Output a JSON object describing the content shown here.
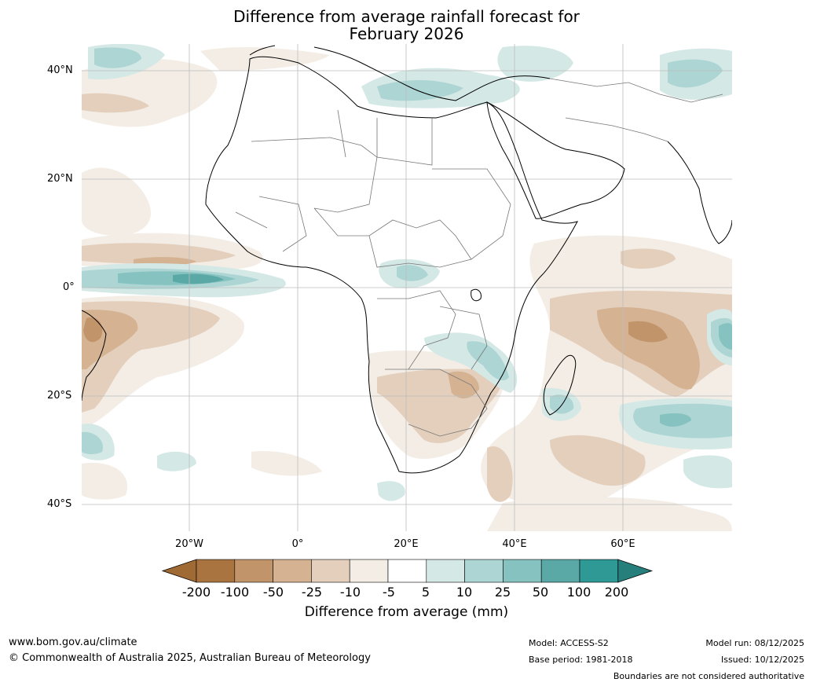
{
  "title": {
    "line1": "Difference from average rainfall forecast for",
    "line2": "February 2026"
  },
  "axes": {
    "lat_labels": [
      "40°N",
      "20°N",
      "0°",
      "20°S",
      "40°S"
    ],
    "lon_labels": [
      "20°W",
      "0°",
      "20°E",
      "40°E",
      "60°E"
    ]
  },
  "colorbar": {
    "title": "Difference from average (mm)",
    "ticks": [
      "-200",
      "-100",
      "-50",
      "-25",
      "-10",
      "-5",
      "5",
      "10",
      "25",
      "50",
      "100",
      "200"
    ],
    "colors": [
      "#a9743f",
      "#c19469",
      "#d4b292",
      "#e3cfbc",
      "#f3ede5",
      "#ffffff",
      "#d4e8e6",
      "#acd5d3",
      "#85c2c0",
      "#5aa9a7",
      "#2f9995"
    ],
    "low_extend_color": "#a06a35",
    "high_extend_color": "#277f7c"
  },
  "footer": {
    "website": "www.bom.gov.au/climate",
    "copyright": "© Commonwealth of Australia 2025, Australian Bureau of Meteorology",
    "model": "Model: ACCESS-S2",
    "base_period": "Base period: 1981-2018",
    "model_run": "Model run: 08/12/2025",
    "issued": "Issued: 10/12/2025",
    "disclaimer": "Boundaries are not considered authoritative"
  }
}
